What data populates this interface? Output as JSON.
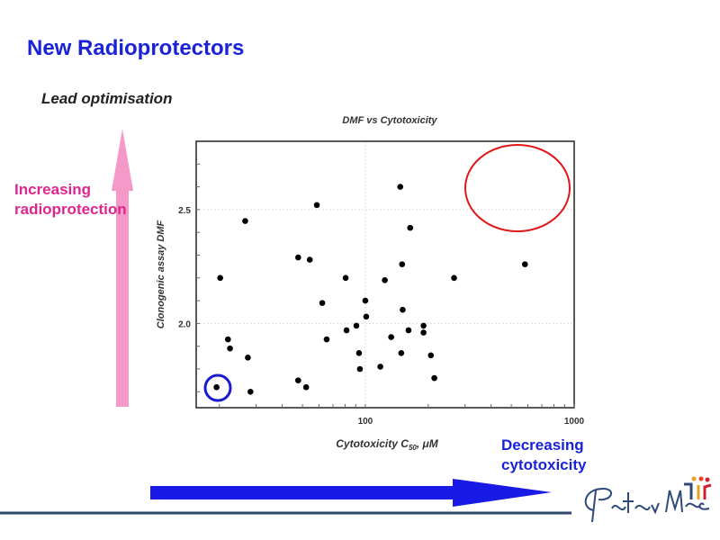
{
  "slide": {
    "title": "New Radioprotectors",
    "subtitle": "Lead optimisation",
    "left_annotation": [
      "Increasing",
      "radioprotection"
    ],
    "bottom_annotation": [
      "Decreasing",
      "cytotoxicity"
    ],
    "logo_text": "Peter Mac",
    "colors": {
      "title": "#1a23d8",
      "pink_arrow": "#f59ac8",
      "blue_arrow": "#1a1ae6",
      "highlight_low": "#1a1ad0",
      "highlight_target": "#e01818",
      "footer_line": "#2e4a6a"
    }
  },
  "chart_data": {
    "type": "scatter",
    "title": "DMF vs Cytotoxicity",
    "xlabel": "Cytotoxicity C50, μM",
    "xlabel_main": "Cytotoxicity C",
    "xlabel_sub": "50",
    "xlabel_unit": ", μM",
    "ylabel": "Clonogenic assay DMF",
    "xscale": "log",
    "xlim": [
      15.5,
      1000
    ],
    "ylim": [
      1.63,
      2.8
    ],
    "xticks": [
      {
        "value": 100,
        "label": "100"
      },
      {
        "value": 1000,
        "label": "1000"
      }
    ],
    "yticks": [
      {
        "value": 2.0,
        "label": "2.0"
      },
      {
        "value": 2.5,
        "label": "2.5"
      }
    ],
    "grid": true,
    "points": [
      [
        19.4,
        1.72
      ],
      [
        20.2,
        2.2
      ],
      [
        22.0,
        1.93
      ],
      [
        22.5,
        1.89
      ],
      [
        26.6,
        2.45
      ],
      [
        27.4,
        1.85
      ],
      [
        28.2,
        1.7
      ],
      [
        47.7,
        2.29
      ],
      [
        47.7,
        1.75
      ],
      [
        54.2,
        2.28
      ],
      [
        52.1,
        1.72
      ],
      [
        58.6,
        2.52
      ],
      [
        62.2,
        2.09
      ],
      [
        65.3,
        1.93
      ],
      [
        80.5,
        2.2
      ],
      [
        81.3,
        1.97
      ],
      [
        90.6,
        1.99
      ],
      [
        93.3,
        1.87
      ],
      [
        94.2,
        1.8
      ],
      [
        100,
        2.1
      ],
      [
        101,
        2.03
      ],
      [
        118,
        1.81
      ],
      [
        124,
        2.19
      ],
      [
        133,
        1.94
      ],
      [
        147,
        2.6
      ],
      [
        148.6,
        1.87
      ],
      [
        150,
        2.26
      ],
      [
        151,
        2.06
      ],
      [
        161,
        1.97
      ],
      [
        164,
        2.42
      ],
      [
        190,
        1.99
      ],
      [
        190,
        1.96
      ],
      [
        206,
        1.86
      ],
      [
        214,
        1.76
      ],
      [
        266,
        2.2
      ],
      [
        581,
        2.26
      ]
    ],
    "annotations": [
      {
        "type": "circle",
        "color": "blue",
        "around_point": [
          19.4,
          1.72
        ]
      },
      {
        "type": "ellipse",
        "color": "red",
        "center": [
          550,
          2.6
        ],
        "meaning": "target region"
      }
    ]
  }
}
